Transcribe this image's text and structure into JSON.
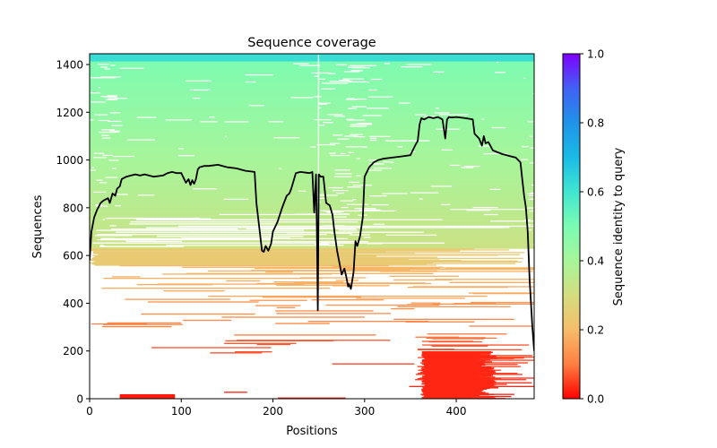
{
  "chart_data": {
    "type": "heatmap",
    "title": "Sequence coverage",
    "xlabel": "Positions",
    "ylabel": "Sequences",
    "xlim": [
      0,
      485
    ],
    "ylim": [
      0,
      1445
    ],
    "xticks": [
      0,
      100,
      200,
      300,
      400
    ],
    "yticks": [
      0,
      200,
      400,
      600,
      800,
      1000,
      1200,
      1400
    ],
    "grid": false,
    "colorbar": {
      "label": "Sequence identity to query",
      "range": [
        0,
        1
      ],
      "ticks": [
        "0.0",
        "0.2",
        "0.4",
        "0.6",
        "0.8",
        "1.0"
      ],
      "colormap": "rainbow",
      "stops": [
        "#ff0000",
        "#ff7f41",
        "#f5bd6a",
        "#d4dd80",
        "#a7f59a",
        "#7afcb3",
        "#41e6d0",
        "#1abbe6",
        "#1f93e8",
        "#4161f4",
        "#7f00ff"
      ]
    },
    "identity_bands": [
      {
        "seq_from": 1415,
        "seq_to": 1445,
        "identity": 0.62
      },
      {
        "seq_from": 1200,
        "seq_to": 1415,
        "identity": 0.48
      },
      {
        "seq_from": 1000,
        "seq_to": 1200,
        "identity": 0.42
      },
      {
        "seq_from": 800,
        "seq_to": 1000,
        "identity": 0.37
      },
      {
        "seq_from": 630,
        "seq_to": 800,
        "identity": 0.32
      },
      {
        "seq_from": 560,
        "seq_to": 630,
        "identity": 0.24
      },
      {
        "seq_from": 420,
        "seq_to": 560,
        "identity": 0.19
      },
      {
        "seq_from": 250,
        "seq_to": 420,
        "identity": 0.13
      },
      {
        "seq_from": 0,
        "seq_to": 250,
        "identity": 0.06
      }
    ],
    "coverage_series": {
      "name": "Coverage",
      "color": "#000000",
      "x": [
        0,
        2,
        5,
        8,
        12,
        15,
        20,
        22,
        25,
        28,
        30,
        33,
        35,
        40,
        45,
        50,
        55,
        60,
        70,
        80,
        85,
        90,
        95,
        100,
        105,
        108,
        110,
        112,
        114,
        116,
        118,
        120,
        125,
        130,
        140,
        150,
        160,
        170,
        180,
        182,
        185,
        188,
        190,
        192,
        195,
        198,
        200,
        205,
        210,
        212,
        215,
        218,
        220,
        225,
        230,
        240,
        243,
        245,
        247,
        248,
        249,
        250,
        252,
        255,
        258,
        262,
        265,
        267,
        270,
        273,
        275,
        278,
        280,
        282,
        283,
        285,
        288,
        290,
        292,
        295,
        298,
        300,
        305,
        310,
        315,
        320,
        330,
        340,
        350,
        355,
        358,
        360,
        362,
        365,
        370,
        375,
        380,
        385,
        388,
        390,
        392,
        395,
        400,
        410,
        418,
        420,
        425,
        428,
        430,
        432,
        435,
        440,
        450,
        455,
        460,
        465,
        470,
        472,
        474,
        476,
        478,
        480,
        483,
        485
      ],
      "y": [
        580,
        700,
        760,
        790,
        820,
        830,
        840,
        820,
        860,
        850,
        880,
        890,
        920,
        930,
        935,
        940,
        935,
        940,
        930,
        935,
        945,
        950,
        945,
        945,
        905,
        920,
        895,
        915,
        900,
        920,
        960,
        970,
        975,
        975,
        980,
        970,
        965,
        955,
        950,
        820,
        720,
        620,
        615,
        640,
        620,
        650,
        700,
        740,
        800,
        820,
        850,
        860,
        880,
        945,
        950,
        945,
        950,
        780,
        940,
        700,
        370,
        940,
        930,
        930,
        820,
        810,
        770,
        700,
        620,
        560,
        520,
        545,
        510,
        470,
        480,
        460,
        530,
        660,
        640,
        680,
        760,
        930,
        970,
        990,
        1000,
        1005,
        1010,
        1015,
        1020,
        1060,
        1080,
        1150,
        1175,
        1170,
        1180,
        1175,
        1180,
        1170,
        1090,
        1170,
        1180,
        1178,
        1180,
        1175,
        1170,
        1110,
        1090,
        1060,
        1100,
        1070,
        1075,
        1040,
        1025,
        1020,
        1015,
        1010,
        990,
        920,
        850,
        800,
        700,
        500,
        300,
        200
      ]
    }
  }
}
